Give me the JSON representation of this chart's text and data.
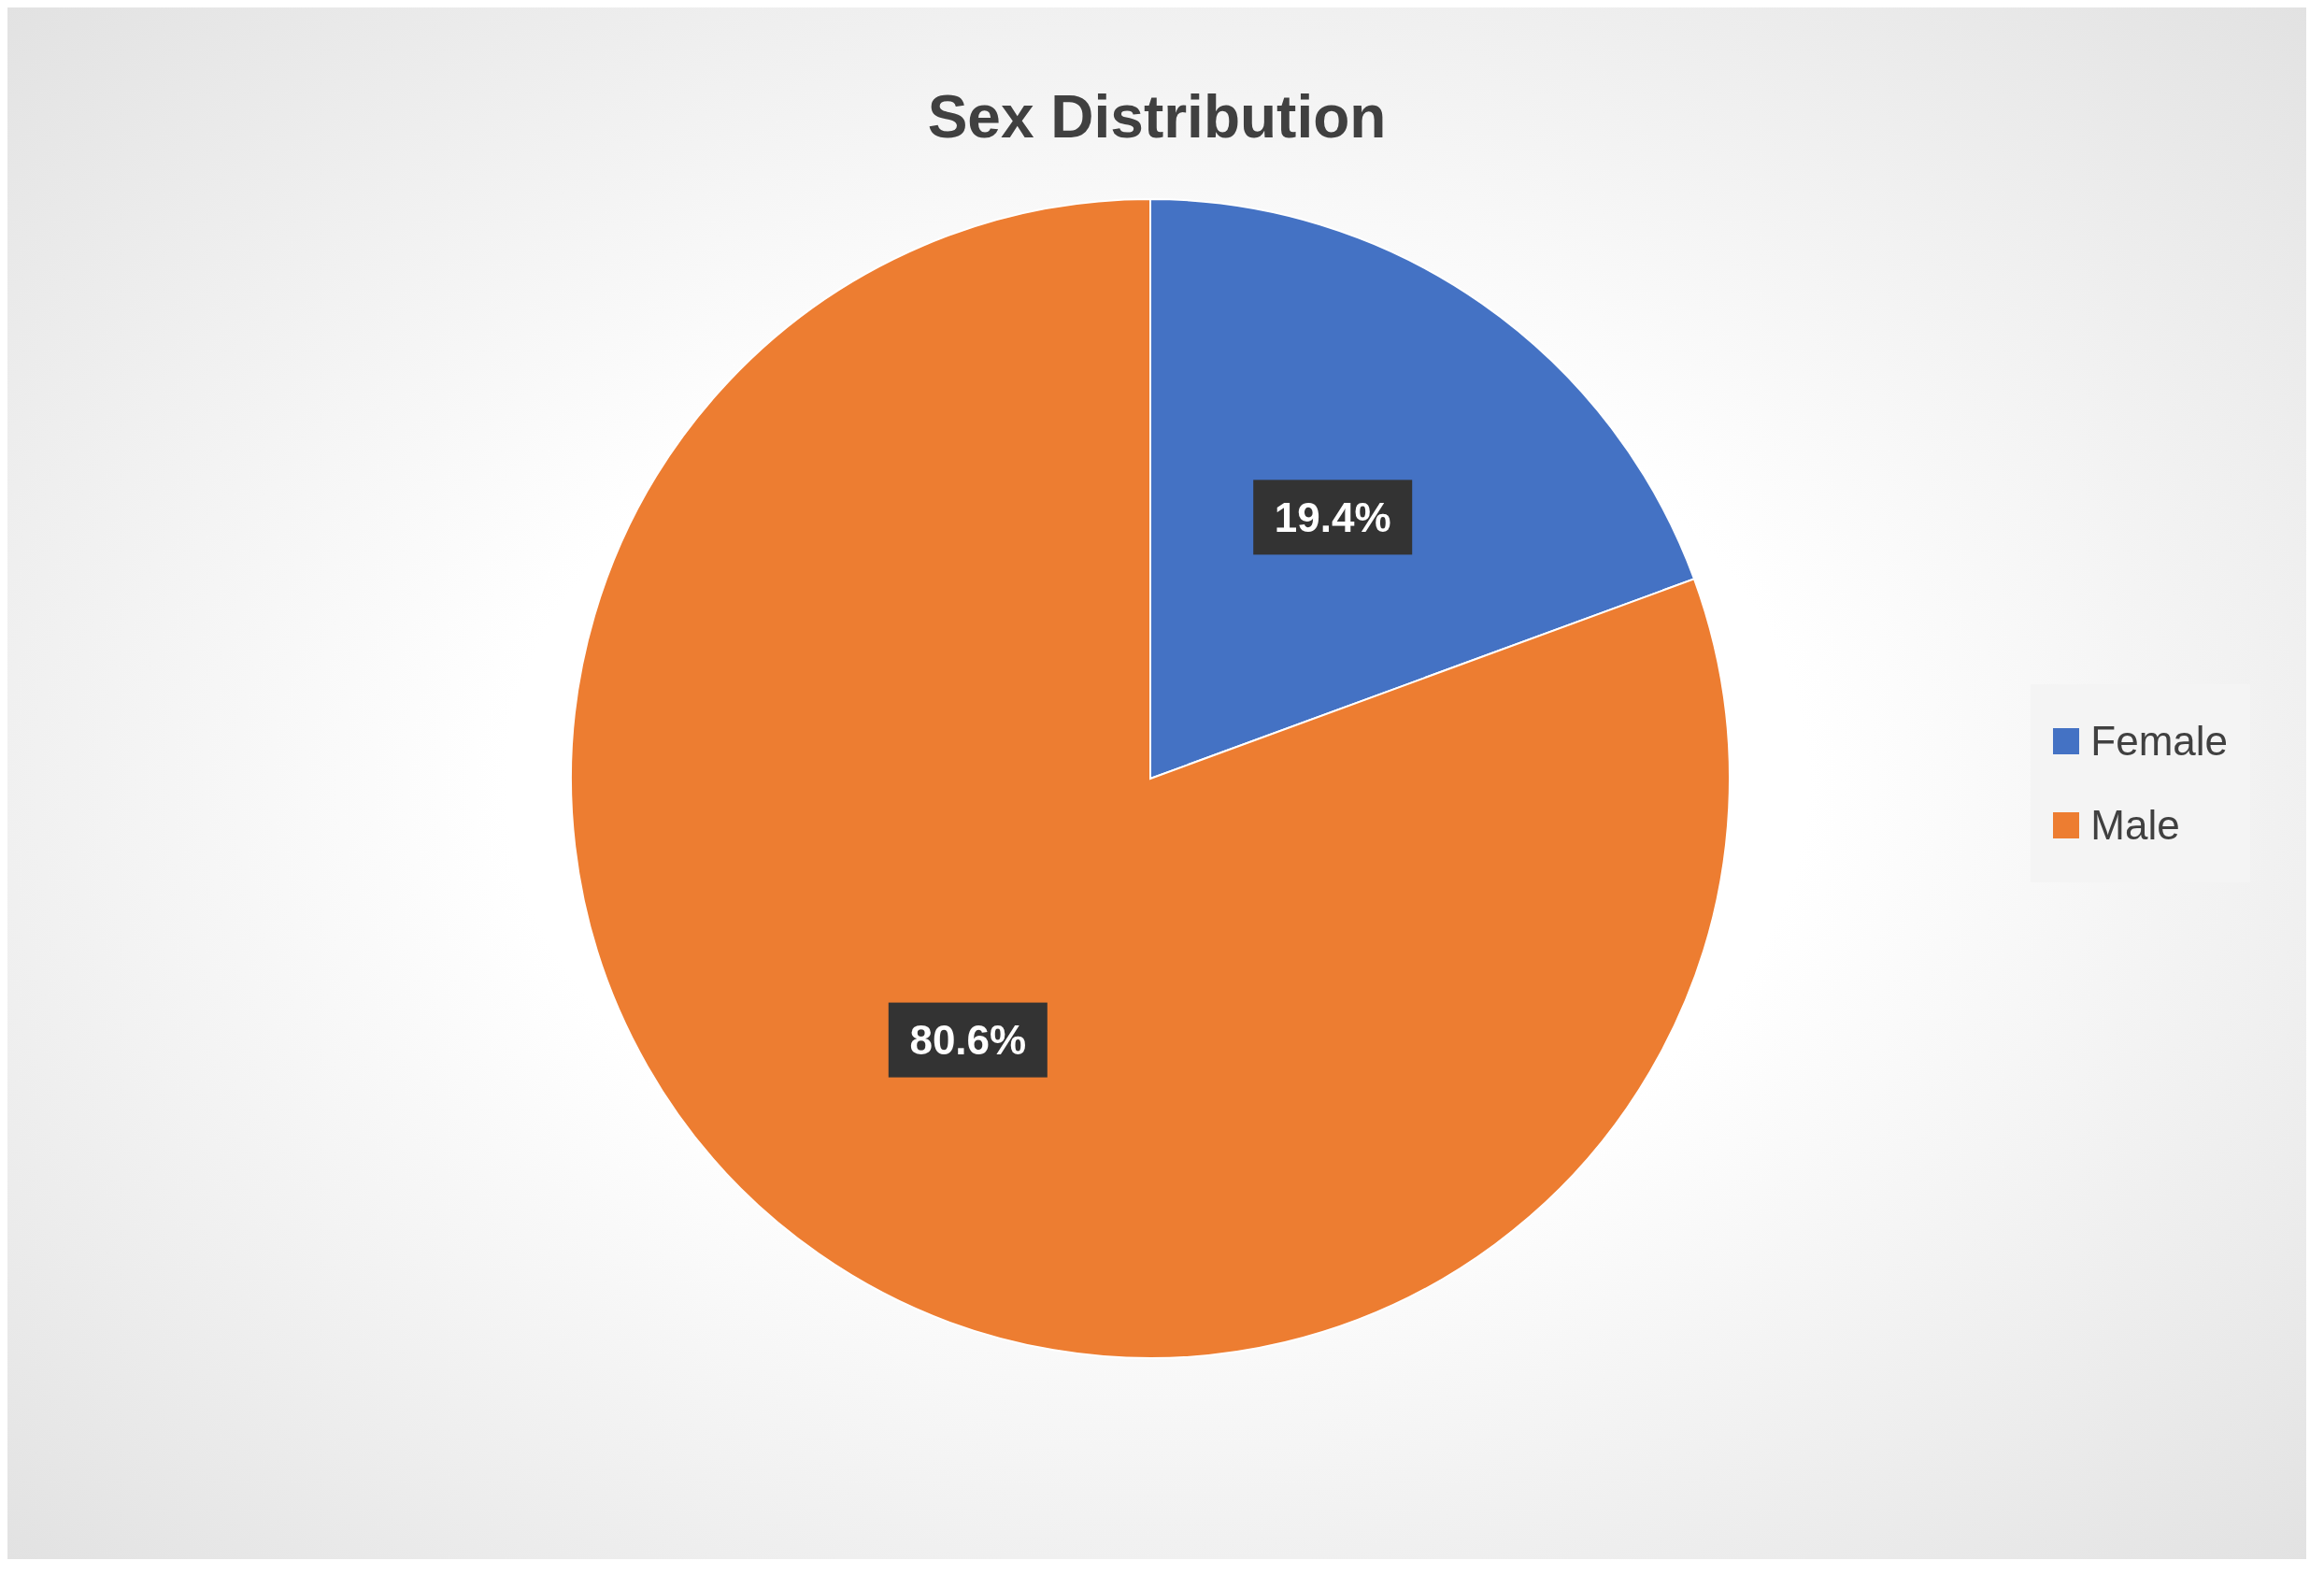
{
  "chart_data": {
    "type": "pie",
    "title": "Sex Distribution",
    "categories": [
      "Female",
      "Male"
    ],
    "values": [
      19.4,
      80.6
    ],
    "colors": [
      "#4472c4",
      "#ed7d31"
    ],
    "value_labels": [
      "19.4%",
      "80.6%"
    ],
    "legend": "right"
  }
}
